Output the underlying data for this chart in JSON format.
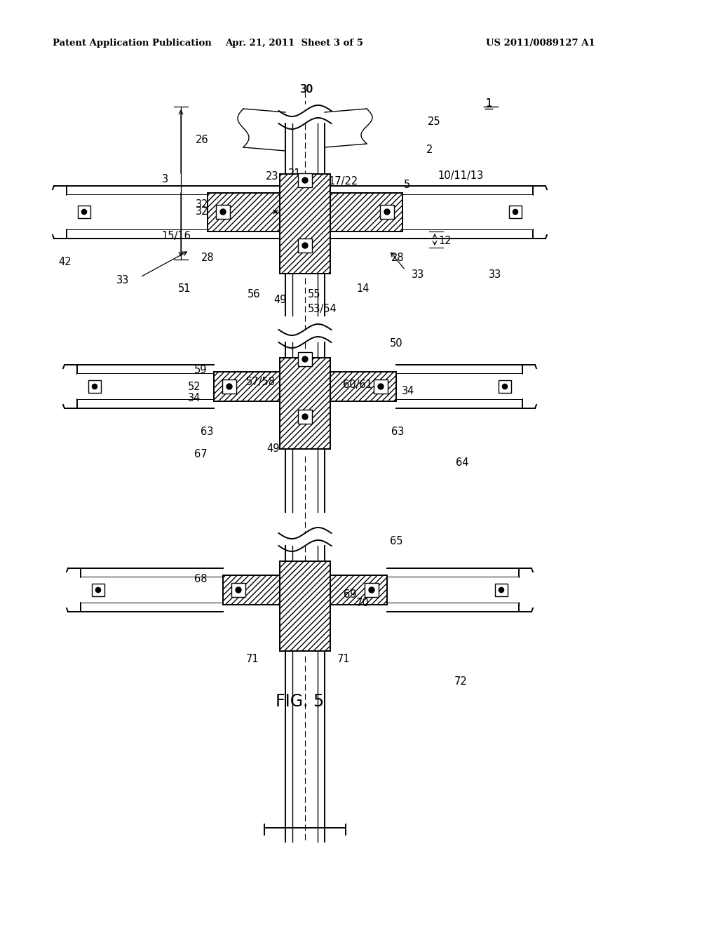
{
  "bg_color": "#ffffff",
  "title_left": "Patent Application Publication",
  "title_center": "Apr. 21, 2011  Sheet 3 of 5",
  "title_right": "US 2011/0089127 A1",
  "fig_label": "FIG. 5"
}
